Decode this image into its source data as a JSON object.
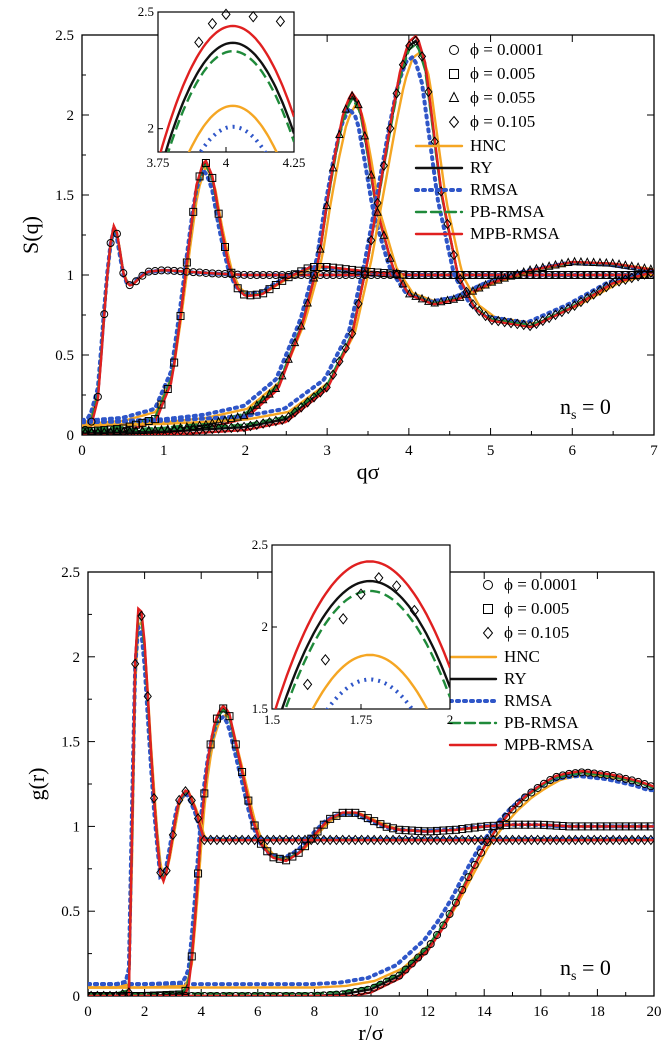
{
  "colors": {
    "hnc": "#f5a623",
    "ry": "#111111",
    "rmsa": "#2f56c8",
    "pbrmsa": "#1f8a3a",
    "mpbrmsa": "#e02020"
  },
  "chart_data": [
    {
      "id": "top",
      "type": "line",
      "xlabel": "qσ",
      "ylabel": "S(q)",
      "xlim": [
        0,
        7
      ],
      "ylim": [
        0,
        2.5
      ],
      "xticks": [
        "0",
        "1",
        "2",
        "3",
        "4",
        "5",
        "6",
        "7"
      ],
      "yticks": [
        "0",
        "0.5",
        "1",
        "1.5",
        "2",
        "2.5"
      ],
      "annotation": "n_s = 0",
      "legend_markers": [
        {
          "label": "ϕ = 0.0001",
          "marker": "circle"
        },
        {
          "label": "ϕ = 0.005",
          "marker": "square"
        },
        {
          "label": "ϕ = 0.055",
          "marker": "triangle"
        },
        {
          "label": "ϕ = 0.105",
          "marker": "diamond"
        }
      ],
      "legend_lines": [
        {
          "label": "HNC",
          "key": "hnc",
          "style": "solid"
        },
        {
          "label": "RY",
          "key": "ry",
          "style": "solid"
        },
        {
          "label": "RMSA",
          "key": "rmsa",
          "style": "dotted"
        },
        {
          "label": "PB-RMSA",
          "key": "pbrmsa",
          "style": "dashed"
        },
        {
          "label": "MPB-RMSA",
          "key": "mpbrmsa",
          "style": "solid"
        }
      ],
      "series": [
        {
          "marker": "circle",
          "x": [
            0.0,
            0.1,
            0.2,
            0.3,
            0.35,
            0.4,
            0.45,
            0.5,
            0.55,
            0.6,
            0.7,
            0.8,
            1.0,
            1.3,
            1.6,
            2.0,
            3.0,
            4.0,
            5.0,
            6.0,
            7.0
          ],
          "y": [
            0.02,
            0.05,
            0.25,
            0.95,
            1.2,
            1.33,
            1.2,
            1.02,
            0.95,
            0.93,
            0.98,
            1.02,
            1.03,
            1.02,
            1.01,
            1.0,
            1.0,
            1.0,
            1.0,
            1.0,
            1.0
          ]
        },
        {
          "marker": "square",
          "x": [
            0.0,
            0.5,
            0.9,
            1.1,
            1.2,
            1.3,
            1.4,
            1.5,
            1.6,
            1.7,
            1.8,
            1.9,
            2.0,
            2.2,
            2.5,
            2.8,
            3.0,
            3.5,
            4.0,
            5.0,
            6.0,
            7.0
          ],
          "y": [
            0.02,
            0.04,
            0.1,
            0.35,
            0.72,
            1.15,
            1.55,
            1.72,
            1.6,
            1.3,
            1.05,
            0.92,
            0.87,
            0.88,
            0.98,
            1.05,
            1.05,
            1.02,
            1.0,
            1.0,
            1.0,
            1.0
          ]
        },
        {
          "marker": "triangle",
          "x": [
            0.0,
            1.0,
            1.5,
            2.0,
            2.4,
            2.7,
            2.9,
            3.0,
            3.1,
            3.2,
            3.3,
            3.4,
            3.5,
            3.6,
            3.8,
            4.0,
            4.3,
            4.6,
            5.0,
            5.5,
            6.0,
            6.5,
            7.0
          ],
          "y": [
            0.01,
            0.03,
            0.06,
            0.12,
            0.3,
            0.7,
            1.1,
            1.45,
            1.75,
            2.0,
            2.12,
            2.05,
            1.75,
            1.42,
            1.05,
            0.88,
            0.82,
            0.85,
            0.95,
            1.03,
            1.08,
            1.07,
            1.03
          ]
        },
        {
          "marker": "diamond",
          "x": [
            0.0,
            1.0,
            2.0,
            2.5,
            3.0,
            3.3,
            3.5,
            3.7,
            3.8,
            3.9,
            4.0,
            4.1,
            4.2,
            4.3,
            4.4,
            4.6,
            4.8,
            5.0,
            5.5,
            6.0,
            6.5,
            7.0
          ],
          "y": [
            0.01,
            0.02,
            0.05,
            0.1,
            0.3,
            0.62,
            1.1,
            1.7,
            2.0,
            2.27,
            2.43,
            2.47,
            2.3,
            1.9,
            1.5,
            1.0,
            0.8,
            0.72,
            0.68,
            0.8,
            0.95,
            1.02
          ]
        }
      ],
      "inset": {
        "xlim": [
          3.75,
          4.25
        ],
        "ylim": [
          1.9,
          2.5
        ],
        "xticks": [
          "3.75",
          "4",
          "4.25"
        ],
        "yticks": [
          "2",
          "2.5"
        ],
        "markers": {
          "x": [
            3.9,
            3.95,
            4.0,
            4.1,
            4.2
          ],
          "y": [
            2.37,
            2.45,
            2.49,
            2.48,
            2.46
          ]
        }
      }
    },
    {
      "id": "bottom",
      "type": "line",
      "xlabel": "r/σ",
      "ylabel": "g(r)",
      "xlim": [
        0,
        20
      ],
      "ylim": [
        0,
        2.5
      ],
      "xticks": [
        "0",
        "2",
        "4",
        "6",
        "8",
        "10",
        "12",
        "14",
        "16",
        "18",
        "20"
      ],
      "yticks": [
        "0",
        "0.5",
        "1",
        "1.5",
        "2",
        "2.5"
      ],
      "annotation": "n_s = 0",
      "legend_markers": [
        {
          "label": "ϕ = 0.0001",
          "marker": "circle"
        },
        {
          "label": "ϕ = 0.005",
          "marker": "square"
        },
        {
          "label": "ϕ = 0.105",
          "marker": "diamond"
        }
      ],
      "legend_lines": [
        {
          "label": "HNC",
          "key": "hnc",
          "style": "solid"
        },
        {
          "label": "RY",
          "key": "ry",
          "style": "solid"
        },
        {
          "label": "RMSA",
          "key": "rmsa",
          "style": "dotted"
        },
        {
          "label": "PB-RMSA",
          "key": "pbrmsa",
          "style": "dashed"
        },
        {
          "label": "MPB-RMSA",
          "key": "mpbrmsa",
          "style": "solid"
        }
      ],
      "series": [
        {
          "marker": "circle",
          "x": [
            0,
            2,
            4,
            6,
            8,
            9,
            10,
            11,
            12,
            12.5,
            13,
            13.5,
            14,
            14.5,
            15,
            15.5,
            16,
            16.5,
            17,
            17.5,
            18,
            18.5,
            19,
            19.5,
            20
          ],
          "y": [
            0,
            0,
            0,
            0,
            0,
            0.01,
            0.04,
            0.12,
            0.28,
            0.4,
            0.55,
            0.72,
            0.88,
            1.0,
            1.1,
            1.18,
            1.24,
            1.29,
            1.31,
            1.32,
            1.31,
            1.3,
            1.28,
            1.26,
            1.23
          ]
        },
        {
          "marker": "square",
          "x": [
            0,
            2,
            3.4,
            3.6,
            3.8,
            4.0,
            4.2,
            4.4,
            4.6,
            4.8,
            5.0,
            5.2,
            5.5,
            5.8,
            6.1,
            6.5,
            7.0,
            7.5,
            8.0,
            8.5,
            9.0,
            9.5,
            10.0,
            10.5,
            11.0,
            12.0,
            13.0,
            14.0,
            15.0,
            16.0,
            17.0,
            18.0,
            19.0
          ],
          "y": [
            0,
            0,
            0.01,
            0.1,
            0.5,
            1.0,
            1.35,
            1.55,
            1.66,
            1.7,
            1.65,
            1.5,
            1.28,
            1.05,
            0.9,
            0.82,
            0.8,
            0.85,
            0.95,
            1.04,
            1.08,
            1.08,
            1.04,
            1.0,
            0.98,
            0.97,
            0.98,
            1.0,
            1.01,
            1.01,
            1.0,
            1.0,
            1.0
          ]
        },
        {
          "marker": "diamond",
          "x": [
            0,
            1.0,
            1.45,
            1.55,
            1.65,
            1.75,
            1.85,
            1.95,
            2.05,
            2.2,
            2.4,
            2.6,
            2.8,
            3.0,
            3.2,
            3.5,
            3.8,
            4.1
          ],
          "y": [
            0,
            0,
            0.02,
            0.9,
            1.9,
            2.25,
            2.28,
            2.18,
            1.95,
            1.5,
            1.0,
            0.65,
            0.75,
            0.95,
            1.15,
            1.22,
            1.1,
            0.92
          ]
        }
      ],
      "inset": {
        "xlim": [
          1.5,
          2.0
        ],
        "ylim": [
          1.5,
          2.5
        ],
        "xticks": [
          "1.5",
          "1.75",
          "2"
        ],
        "yticks": [
          "1.5",
          "2",
          "2.5"
        ],
        "markers": {
          "x": [
            1.6,
            1.65,
            1.7,
            1.75,
            1.8,
            1.85,
            1.9
          ],
          "y": [
            1.65,
            1.8,
            2.05,
            2.2,
            2.3,
            2.25,
            2.1
          ]
        }
      }
    }
  ]
}
